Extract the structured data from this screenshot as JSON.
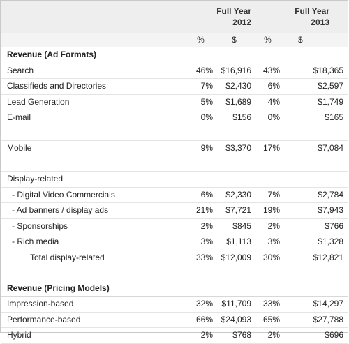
{
  "header": {
    "years": [
      {
        "line1": "Full Year",
        "line2": "2012"
      },
      {
        "line1": "Full Year",
        "line2": "2013"
      }
    ],
    "units": [
      "%",
      "$",
      "%",
      "$"
    ]
  },
  "rows": [
    {
      "kind": "section",
      "label": "Revenue (Ad Formats)"
    },
    {
      "kind": "row",
      "label": "Search",
      "p12": "46%",
      "d12": "$16,916",
      "p13": "43%",
      "d13": "$18,365"
    },
    {
      "kind": "row",
      "label": "Classifieds and Directories",
      "p12": "7%",
      "d12": "$2,430",
      "p13": "6%",
      "d13": "$2,597"
    },
    {
      "kind": "row",
      "label": "Lead Generation",
      "p12": "5%",
      "d12": "$1,689",
      "p13": "4%",
      "d13": "$1,749"
    },
    {
      "kind": "row",
      "label": "E-mail",
      "p12": "0%",
      "d12": "$156",
      "p13": "0%",
      "d13": "$165"
    },
    {
      "kind": "spacer"
    },
    {
      "kind": "row",
      "label": "Mobile",
      "p12": "9%",
      "d12": "$3,370",
      "p13": "17%",
      "d13": "$7,084"
    },
    {
      "kind": "spacer"
    },
    {
      "kind": "row",
      "label": "Display-related",
      "p12": "",
      "d12": "",
      "p13": "",
      "d13": ""
    },
    {
      "kind": "sub",
      "label": "- Digital Video Commercials",
      "p12": "6%",
      "d12": "$2,330",
      "p13": "7%",
      "d13": "$2,784"
    },
    {
      "kind": "sub",
      "label": "- Ad banners / display ads",
      "p12": "21%",
      "d12": "$7,721",
      "p13": "19%",
      "d13": "$7,943"
    },
    {
      "kind": "sub",
      "label": "- Sponsorships",
      "p12": "2%",
      "d12": "$845",
      "p13": "2%",
      "d13": "$766"
    },
    {
      "kind": "sub",
      "label": "- Rich media",
      "p12": "3%",
      "d12": "$1,113",
      "p13": "3%",
      "d13": "$1,328"
    },
    {
      "kind": "total",
      "label": "Total display-related",
      "p12": "33%",
      "d12": "$12,009",
      "p13": "30%",
      "d13": "$12,821"
    },
    {
      "kind": "spacer"
    },
    {
      "kind": "section",
      "label": "Revenue (Pricing Models)"
    },
    {
      "kind": "row",
      "label": "Impression-based",
      "p12": "32%",
      "d12": "$11,709",
      "p13": "33%",
      "d13": "$14,297"
    },
    {
      "kind": "row",
      "label": "Performance-based",
      "p12": "66%",
      "d12": "$24,093",
      "p13": "65%",
      "d13": "$27,788"
    },
    {
      "kind": "row",
      "label": "Hybrid",
      "p12": "2%",
      "d12": "$768",
      "p13": "2%",
      "d13": "$696"
    }
  ]
}
